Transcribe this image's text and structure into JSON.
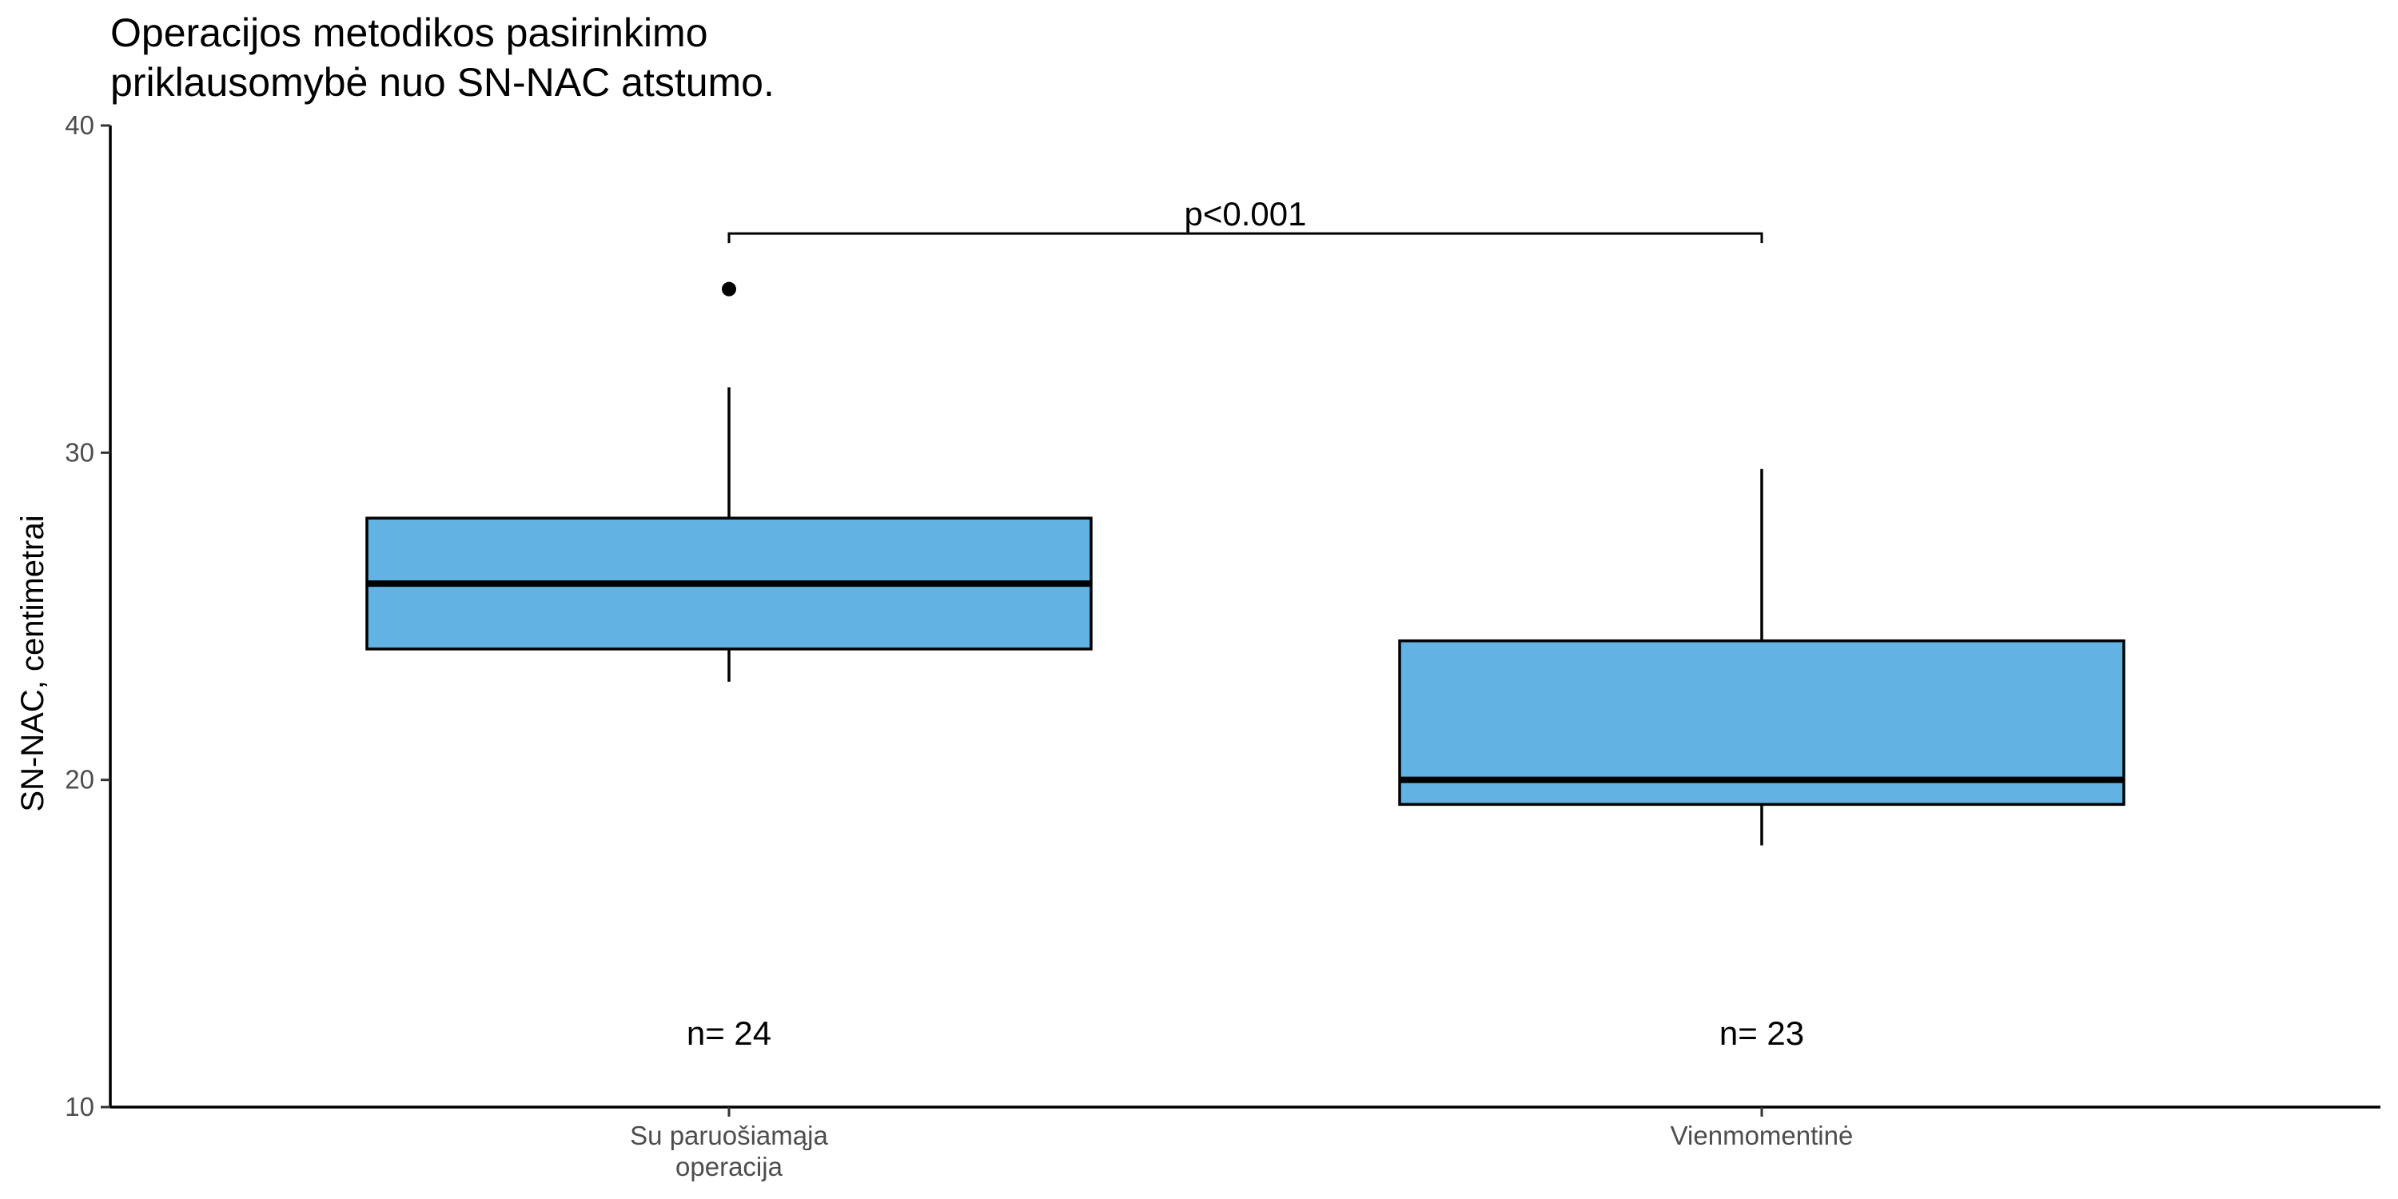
{
  "chart_data": {
    "type": "boxplot",
    "title_lines": [
      "Operacijos metodikos pasirinkimo",
      "priklausomybė nuo SN-NAC atstumo."
    ],
    "xlabel": "",
    "ylabel": "SN-NAC, centimetrai",
    "ylim": [
      10,
      40
    ],
    "yticks": [
      "10",
      "20",
      "30",
      "40"
    ],
    "categories": [
      {
        "lines": [
          "Su paruošiamąja",
          "operacija"
        ]
      },
      {
        "lines": [
          "Vienmomentinė"
        ]
      }
    ],
    "boxes": [
      {
        "q1": 24,
        "median": 26,
        "q3": 28,
        "whisker_low": 23,
        "whisker_high": 32,
        "outliers": [
          35
        ],
        "n_label": "n= 24"
      },
      {
        "q1": 19.25,
        "median": 20,
        "q3": 24.25,
        "whisker_low": 18,
        "whisker_high": 29.5,
        "outliers": [],
        "n_label": "n= 23"
      }
    ],
    "comparison": {
      "from": 0,
      "to": 1,
      "y": 36.7,
      "label": "p<0.001"
    },
    "fill_color": "#62b3e4",
    "line_color": "#000000",
    "grid": false,
    "legend": "none"
  }
}
